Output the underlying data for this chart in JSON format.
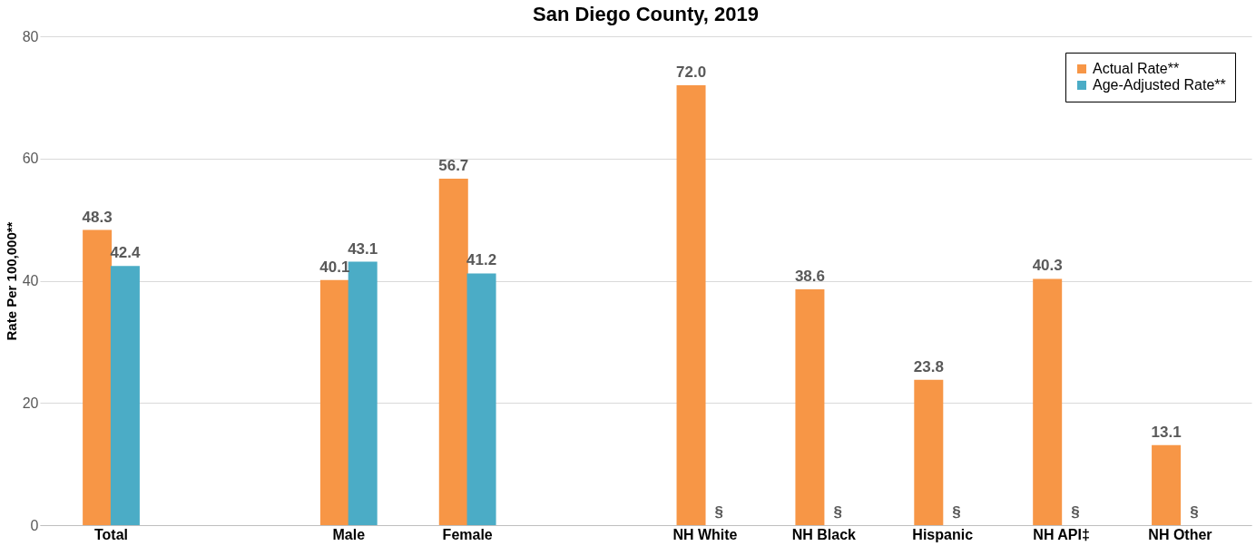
{
  "chart_data": {
    "type": "bar",
    "title": "San Diego County, 2019",
    "ylabel": "Rate Per 100,000**",
    "categories": [
      "Total",
      null,
      "Male",
      "Female",
      null,
      "NH White",
      "NH Black",
      "Hispanic",
      "NH API‡",
      "NH Other"
    ],
    "series": [
      {
        "name": "Actual Rate**",
        "color": "#f79646",
        "values": [
          48.3,
          null,
          40.1,
          56.7,
          null,
          72.0,
          38.6,
          23.8,
          40.3,
          13.1
        ],
        "value_labels": [
          "48.3",
          null,
          "40.1",
          "56.7",
          null,
          "72.0",
          "38.6",
          "23.8",
          "40.3",
          "13.1"
        ]
      },
      {
        "name": "Age-Adjusted Rate**",
        "color": "#4bacc6",
        "values": [
          42.4,
          null,
          43.1,
          41.2,
          null,
          null,
          null,
          null,
          null,
          null
        ],
        "value_labels": [
          "42.4",
          null,
          "43.1",
          "41.2",
          null,
          "§",
          "§",
          "§",
          "§",
          "§"
        ]
      }
    ],
    "ylim": [
      0,
      80
    ],
    "yticks": [
      0,
      20,
      40,
      60,
      80
    ],
    "grid": "y",
    "legend": "top right"
  }
}
